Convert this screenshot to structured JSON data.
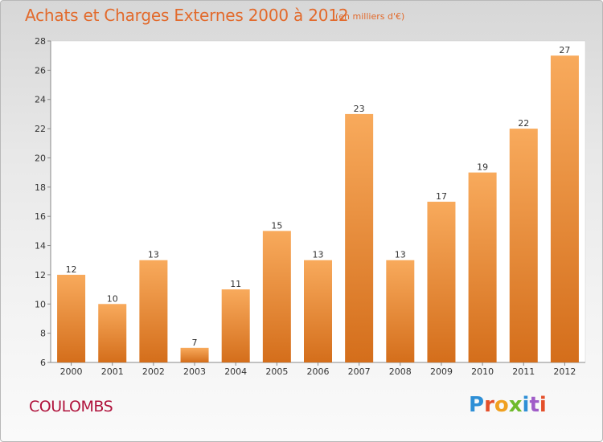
{
  "header": {
    "title": "Achats et Charges Externes 2000 à 2012",
    "subtitle": "(en milliers d'€)"
  },
  "footer": {
    "city": "COULOMBS",
    "logo_text": "Proxiti"
  },
  "colors": {
    "title": "#e26a2c",
    "city": "#b0133c",
    "bar_light": "#f7a75a",
    "bar_dark": "#d5701c"
  },
  "chart_data": {
    "type": "bar",
    "title": "Achats et Charges Externes 2000 à 2012",
    "subtitle": "(en milliers d'€)",
    "categories": [
      "2000",
      "2001",
      "2002",
      "2003",
      "2004",
      "2005",
      "2006",
      "2007",
      "2008",
      "2009",
      "2010",
      "2011",
      "2012"
    ],
    "values": [
      12,
      10,
      13,
      7,
      11,
      15,
      13,
      23,
      13,
      17,
      19,
      22,
      27
    ],
    "ylim": [
      6,
      28
    ],
    "yticks": [
      6,
      8,
      10,
      12,
      14,
      16,
      18,
      20,
      22,
      24,
      26,
      28
    ],
    "grid": false,
    "data_labels": true
  }
}
